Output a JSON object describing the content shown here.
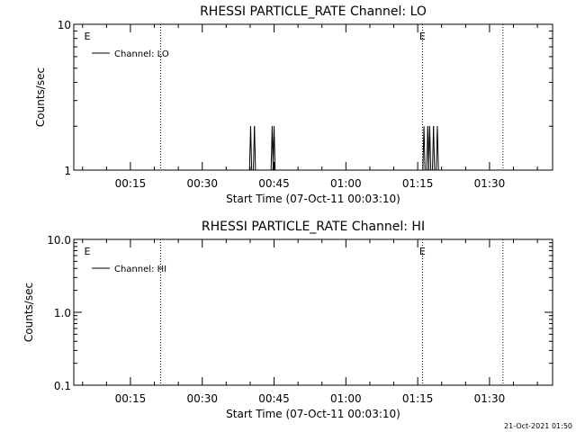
{
  "chart_data": [
    {
      "type": "line",
      "title": "RHESSI PARTICLE_RATE Channel: LO",
      "xlabel": "Start Time (07-Oct-11 00:03:10)",
      "ylabel": "Counts/sec",
      "x_unit": "minutes after 00:00 UT",
      "xlim": [
        3.17,
        103.17
      ],
      "ylim": [
        1,
        10
      ],
      "yscale": "log",
      "x_ticks": [
        15,
        30,
        45,
        60,
        75,
        90
      ],
      "x_tick_labels": [
        "00:15",
        "00:30",
        "00:45",
        "01:00",
        "01:15",
        "01:30"
      ],
      "y_ticks": [
        1,
        10
      ],
      "y_tick_labels": [
        "1",
        "10"
      ],
      "legend": {
        "entries": [
          "Channel: LO"
        ],
        "position": "top-left"
      },
      "event_markers": [
        {
          "x": 5.9,
          "label": "E"
        },
        {
          "x": 75.9,
          "label": "E"
        }
      ],
      "vlines": [
        21.3,
        76.0,
        92.8
      ],
      "series": [
        {
          "name": "Channel: LO",
          "x": [
            39.6,
            40.1,
            40.5,
            40.9,
            41.4,
            44.2,
            44.6,
            45.0,
            45.4,
            75.9,
            76.3,
            76.7,
            77.1,
            77.5,
            77.9,
            78.3,
            78.7,
            79.1
          ],
          "y": [
            1,
            2,
            1,
            2,
            1,
            1,
            2,
            2,
            1,
            1,
            2,
            1,
            2,
            2,
            1,
            2,
            1,
            2
          ],
          "baseline": 1
        }
      ]
    },
    {
      "type": "line",
      "title": "RHESSI PARTICLE_RATE Channel: HI",
      "xlabel": "Start Time (07-Oct-11 00:03:10)",
      "ylabel": "Counts/sec",
      "x_unit": "minutes after 00:00 UT",
      "xlim": [
        3.17,
        103.17
      ],
      "ylim": [
        0.1,
        10
      ],
      "yscale": "log",
      "x_ticks": [
        15,
        30,
        45,
        60,
        75,
        90
      ],
      "x_tick_labels": [
        "00:15",
        "00:30",
        "00:45",
        "01:00",
        "01:15",
        "01:30"
      ],
      "y_ticks": [
        0.1,
        1,
        10
      ],
      "y_tick_labels": [
        "0.1",
        "1.0",
        "10.0"
      ],
      "legend": {
        "entries": [
          "Channel: HI"
        ],
        "position": "top-left"
      },
      "event_markers": [
        {
          "x": 5.9,
          "label": "E"
        },
        {
          "x": 75.9,
          "label": "E"
        }
      ],
      "vlines": [
        21.3,
        76.0,
        92.8
      ],
      "series": [
        {
          "name": "Channel: HI",
          "x": [],
          "y": []
        }
      ]
    }
  ],
  "footer_timestamp": "21-Oct-2021 01:50"
}
